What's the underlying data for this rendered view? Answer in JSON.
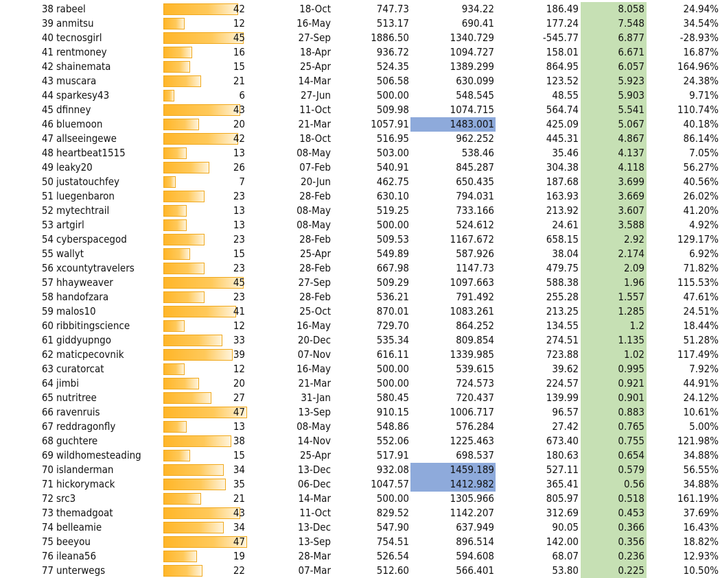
{
  "colors": {
    "bar_fill": "#ffb629",
    "highlight_blue": "#8eaadb",
    "highlight_green": "#c6e0b4"
  },
  "bar_scale_max": 47,
  "rows": [
    {
      "rank": "38",
      "name": "rabeel",
      "count": 42,
      "date": "18-Oct",
      "c1": "747.73",
      "c2": "934.22",
      "c3": "186.49",
      "c4": "8.058",
      "c5": "24.94%",
      "hl": false
    },
    {
      "rank": "39",
      "name": "anmitsu",
      "count": 12,
      "date": "16-May",
      "c1": "513.17",
      "c2": "690.41",
      "c3": "177.24",
      "c4": "7.548",
      "c5": "34.54%",
      "hl": false
    },
    {
      "rank": "40",
      "name": "tecnosgirl",
      "count": 45,
      "date": "27-Sep",
      "c1": "1886.50",
      "c2": "1340.729",
      "c3": "-545.77",
      "c4": "6.877",
      "c5": "-28.93%",
      "hl": false
    },
    {
      "rank": "41",
      "name": "rentmoney",
      "count": 16,
      "date": "18-Apr",
      "c1": "936.72",
      "c2": "1094.727",
      "c3": "158.01",
      "c4": "6.671",
      "c5": "16.87%",
      "hl": false
    },
    {
      "rank": "42",
      "name": "shainemata",
      "count": 15,
      "date": "25-Apr",
      "c1": "524.35",
      "c2": "1389.299",
      "c3": "864.95",
      "c4": "6.057",
      "c5": "164.96%",
      "hl": false
    },
    {
      "rank": "43",
      "name": "muscara",
      "count": 21,
      "date": "14-Mar",
      "c1": "506.58",
      "c2": "630.099",
      "c3": "123.52",
      "c4": "5.923",
      "c5": "24.38%",
      "hl": false
    },
    {
      "rank": "44",
      "name": "sparkesy43",
      "count": 6,
      "date": "27-Jun",
      "c1": "500.00",
      "c2": "548.545",
      "c3": "48.55",
      "c4": "5.903",
      "c5": "9.71%",
      "hl": false
    },
    {
      "rank": "45",
      "name": "dfinney",
      "count": 43,
      "date": "11-Oct",
      "c1": "509.98",
      "c2": "1074.715",
      "c3": "564.74",
      "c4": "5.541",
      "c5": "110.74%",
      "hl": false
    },
    {
      "rank": "46",
      "name": "bluemoon",
      "count": 20,
      "date": "21-Mar",
      "c1": "1057.91",
      "c2": "1483.001",
      "c3": "425.09",
      "c4": "5.067",
      "c5": "40.18%",
      "hl": true
    },
    {
      "rank": "47",
      "name": "allseeingewe",
      "count": 42,
      "date": "18-Oct",
      "c1": "516.95",
      "c2": "962.252",
      "c3": "445.31",
      "c4": "4.867",
      "c5": "86.14%",
      "hl": false
    },
    {
      "rank": "48",
      "name": "heartbeat1515",
      "count": 13,
      "date": "08-May",
      "c1": "503.00",
      "c2": "538.46",
      "c3": "35.46",
      "c4": "4.137",
      "c5": "7.05%",
      "hl": false
    },
    {
      "rank": "49",
      "name": "leaky20",
      "count": 26,
      "date": "07-Feb",
      "c1": "540.91",
      "c2": "845.287",
      "c3": "304.38",
      "c4": "4.118",
      "c5": "56.27%",
      "hl": false
    },
    {
      "rank": "50",
      "name": "justatouchfey",
      "count": 7,
      "date": "20-Jun",
      "c1": "462.75",
      "c2": "650.435",
      "c3": "187.68",
      "c4": "3.699",
      "c5": "40.56%",
      "hl": false
    },
    {
      "rank": "51",
      "name": "luegenbaron",
      "count": 23,
      "date": "28-Feb",
      "c1": "630.10",
      "c2": "794.031",
      "c3": "163.93",
      "c4": "3.669",
      "c5": "26.02%",
      "hl": false
    },
    {
      "rank": "52",
      "name": "mytechtrail",
      "count": 13,
      "date": "08-May",
      "c1": "519.25",
      "c2": "733.166",
      "c3": "213.92",
      "c4": "3.607",
      "c5": "41.20%",
      "hl": false
    },
    {
      "rank": "53",
      "name": "artgirl",
      "count": 13,
      "date": "08-May",
      "c1": "500.00",
      "c2": "524.612",
      "c3": "24.61",
      "c4": "3.588",
      "c5": "4.92%",
      "hl": false
    },
    {
      "rank": "54",
      "name": "cyberspacegod",
      "count": 23,
      "date": "28-Feb",
      "c1": "509.53",
      "c2": "1167.672",
      "c3": "658.15",
      "c4": "2.92",
      "c5": "129.17%",
      "hl": false
    },
    {
      "rank": "55",
      "name": "wallyt",
      "count": 15,
      "date": "25-Apr",
      "c1": "549.89",
      "c2": "587.926",
      "c3": "38.04",
      "c4": "2.174",
      "c5": "6.92%",
      "hl": false
    },
    {
      "rank": "56",
      "name": "xcountytravelers",
      "count": 23,
      "date": "28-Feb",
      "c1": "667.98",
      "c2": "1147.73",
      "c3": "479.75",
      "c4": "2.09",
      "c5": "71.82%",
      "hl": false
    },
    {
      "rank": "57",
      "name": "hhayweaver",
      "count": 45,
      "date": "27-Sep",
      "c1": "509.29",
      "c2": "1097.663",
      "c3": "588.38",
      "c4": "1.96",
      "c5": "115.53%",
      "hl": false
    },
    {
      "rank": "58",
      "name": "handofzara",
      "count": 23,
      "date": "28-Feb",
      "c1": "536.21",
      "c2": "791.492",
      "c3": "255.28",
      "c4": "1.557",
      "c5": "47.61%",
      "hl": false
    },
    {
      "rank": "59",
      "name": "malos10",
      "count": 41,
      "date": "25-Oct",
      "c1": "870.01",
      "c2": "1083.261",
      "c3": "213.25",
      "c4": "1.285",
      "c5": "24.51%",
      "hl": false
    },
    {
      "rank": "60",
      "name": "ribbitingscience",
      "count": 12,
      "date": "16-May",
      "c1": "729.70",
      "c2": "864.252",
      "c3": "134.55",
      "c4": "1.2",
      "c5": "18.44%",
      "hl": false
    },
    {
      "rank": "61",
      "name": "giddyupngo",
      "count": 33,
      "date": "20-Dec",
      "c1": "535.34",
      "c2": "809.854",
      "c3": "274.51",
      "c4": "1.135",
      "c5": "51.28%",
      "hl": false
    },
    {
      "rank": "62",
      "name": "maticpecovnik",
      "count": 39,
      "date": "07-Nov",
      "c1": "616.11",
      "c2": "1339.985",
      "c3": "723.88",
      "c4": "1.02",
      "c5": "117.49%",
      "hl": false
    },
    {
      "rank": "63",
      "name": "curatorcat",
      "count": 12,
      "date": "16-May",
      "c1": "500.00",
      "c2": "539.615",
      "c3": "39.62",
      "c4": "0.995",
      "c5": "7.92%",
      "hl": false
    },
    {
      "rank": "64",
      "name": "jimbi",
      "count": 20,
      "date": "21-Mar",
      "c1": "500.00",
      "c2": "724.573",
      "c3": "224.57",
      "c4": "0.921",
      "c5": "44.91%",
      "hl": false
    },
    {
      "rank": "65",
      "name": "nutritree",
      "count": 27,
      "date": "31-Jan",
      "c1": "580.45",
      "c2": "720.437",
      "c3": "139.99",
      "c4": "0.901",
      "c5": "24.12%",
      "hl": false
    },
    {
      "rank": "66",
      "name": "ravenruis",
      "count": 47,
      "date": "13-Sep",
      "c1": "910.15",
      "c2": "1006.717",
      "c3": "96.57",
      "c4": "0.883",
      "c5": "10.61%",
      "hl": false
    },
    {
      "rank": "67",
      "name": "reddragonfly",
      "count": 13,
      "date": "08-May",
      "c1": "548.86",
      "c2": "576.284",
      "c3": "27.42",
      "c4": "0.765",
      "c5": "5.00%",
      "hl": false
    },
    {
      "rank": "68",
      "name": "guchtere",
      "count": 38,
      "date": "14-Nov",
      "c1": "552.06",
      "c2": "1225.463",
      "c3": "673.40",
      "c4": "0.755",
      "c5": "121.98%",
      "hl": false
    },
    {
      "rank": "69",
      "name": "wildhomesteading",
      "count": 15,
      "date": "25-Apr",
      "c1": "517.91",
      "c2": "698.537",
      "c3": "180.63",
      "c4": "0.654",
      "c5": "34.88%",
      "hl": false
    },
    {
      "rank": "70",
      "name": "islanderman",
      "count": 34,
      "date": "13-Dec",
      "c1": "932.08",
      "c2": "1459.189",
      "c3": "527.11",
      "c4": "0.579",
      "c5": "56.55%",
      "hl": true
    },
    {
      "rank": "71",
      "name": "hickorymack",
      "count": 35,
      "date": "06-Dec",
      "c1": "1047.57",
      "c2": "1412.982",
      "c3": "365.41",
      "c4": "0.56",
      "c5": "34.88%",
      "hl": true
    },
    {
      "rank": "72",
      "name": "src3",
      "count": 21,
      "date": "14-Mar",
      "c1": "500.00",
      "c2": "1305.966",
      "c3": "805.97",
      "c4": "0.518",
      "c5": "161.19%",
      "hl": false
    },
    {
      "rank": "73",
      "name": "themadgoat",
      "count": 43,
      "date": "11-Oct",
      "c1": "829.52",
      "c2": "1142.207",
      "c3": "312.69",
      "c4": "0.453",
      "c5": "37.69%",
      "hl": false
    },
    {
      "rank": "74",
      "name": "belleamie",
      "count": 34,
      "date": "13-Dec",
      "c1": "547.90",
      "c2": "637.949",
      "c3": "90.05",
      "c4": "0.366",
      "c5": "16.43%",
      "hl": false
    },
    {
      "rank": "75",
      "name": "beeyou",
      "count": 47,
      "date": "13-Sep",
      "c1": "754.51",
      "c2": "896.514",
      "c3": "142.00",
      "c4": "0.356",
      "c5": "18.82%",
      "hl": false
    },
    {
      "rank": "76",
      "name": "ileana56",
      "count": 19,
      "date": "28-Mar",
      "c1": "526.54",
      "c2": "594.608",
      "c3": "68.07",
      "c4": "0.236",
      "c5": "12.93%",
      "hl": false
    },
    {
      "rank": "77",
      "name": "unterwegs",
      "count": 22,
      "date": "07-Mar",
      "c1": "512.60",
      "c2": "566.401",
      "c3": "53.80",
      "c4": "0.225",
      "c5": "10.50%",
      "hl": false
    }
  ]
}
